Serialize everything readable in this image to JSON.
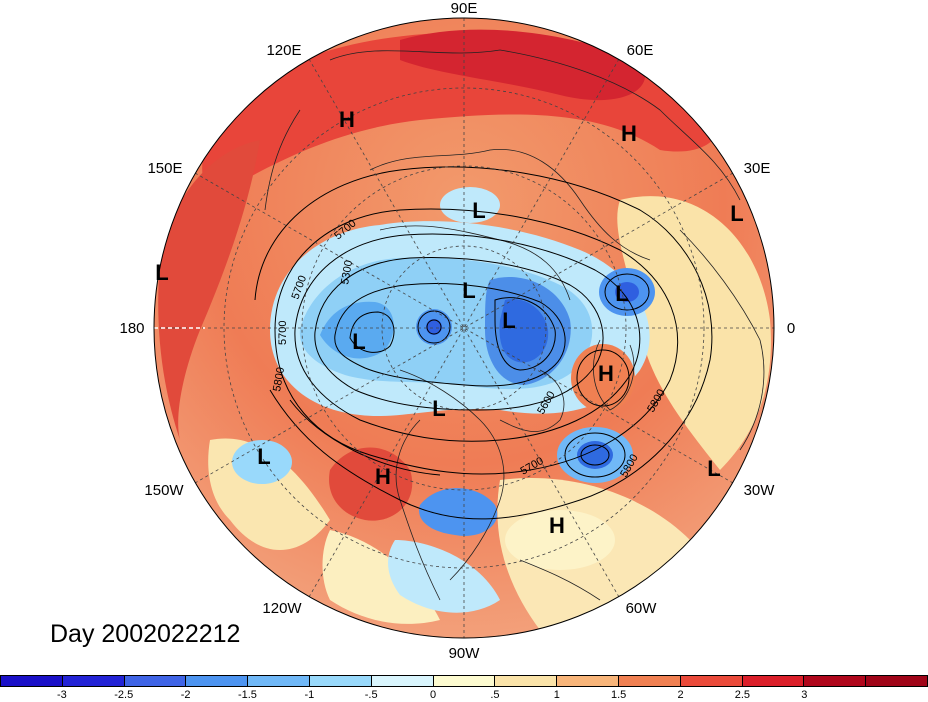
{
  "map": {
    "date_label": "Day 2002022212",
    "longitude_labels": {
      "lon_90E": "90E",
      "lon_60E": "60E",
      "lon_30E": "30E",
      "lon_0": "0",
      "lon_30W": "30W",
      "lon_60W": "60W",
      "lon_90W": "90W",
      "lon_120W": "120W",
      "lon_150W": "150W",
      "lon_180": "180",
      "lon_150E": "150E",
      "lon_120E": "120E"
    },
    "pressure_systems": [
      "H",
      "H",
      "L",
      "L",
      "L",
      "L",
      "L",
      "L",
      "H",
      "L",
      "L",
      "L",
      "H",
      "H",
      "L"
    ],
    "contour_labels": [
      "5700",
      "5300",
      "5700",
      "5700",
      "5800",
      "5600",
      "5800",
      "5700",
      "5800"
    ],
    "colorbar": {
      "ticks": [
        "-3",
        "-2.5",
        "-2",
        "-1.5",
        "-1",
        "-.5",
        "0",
        ".5",
        "1",
        "1.5",
        "2",
        "2.5",
        "3"
      ],
      "colors": [
        "#2323d6",
        "#3f64e6",
        "#4d94f0",
        "#70b8f7",
        "#99d9fb",
        "#d9f5fd",
        "#fdfbd0",
        "#fae3a9",
        "#f8b57a",
        "#f08052",
        "#ea4a3a",
        "#db1f2a",
        "#b0071c"
      ]
    }
  }
}
